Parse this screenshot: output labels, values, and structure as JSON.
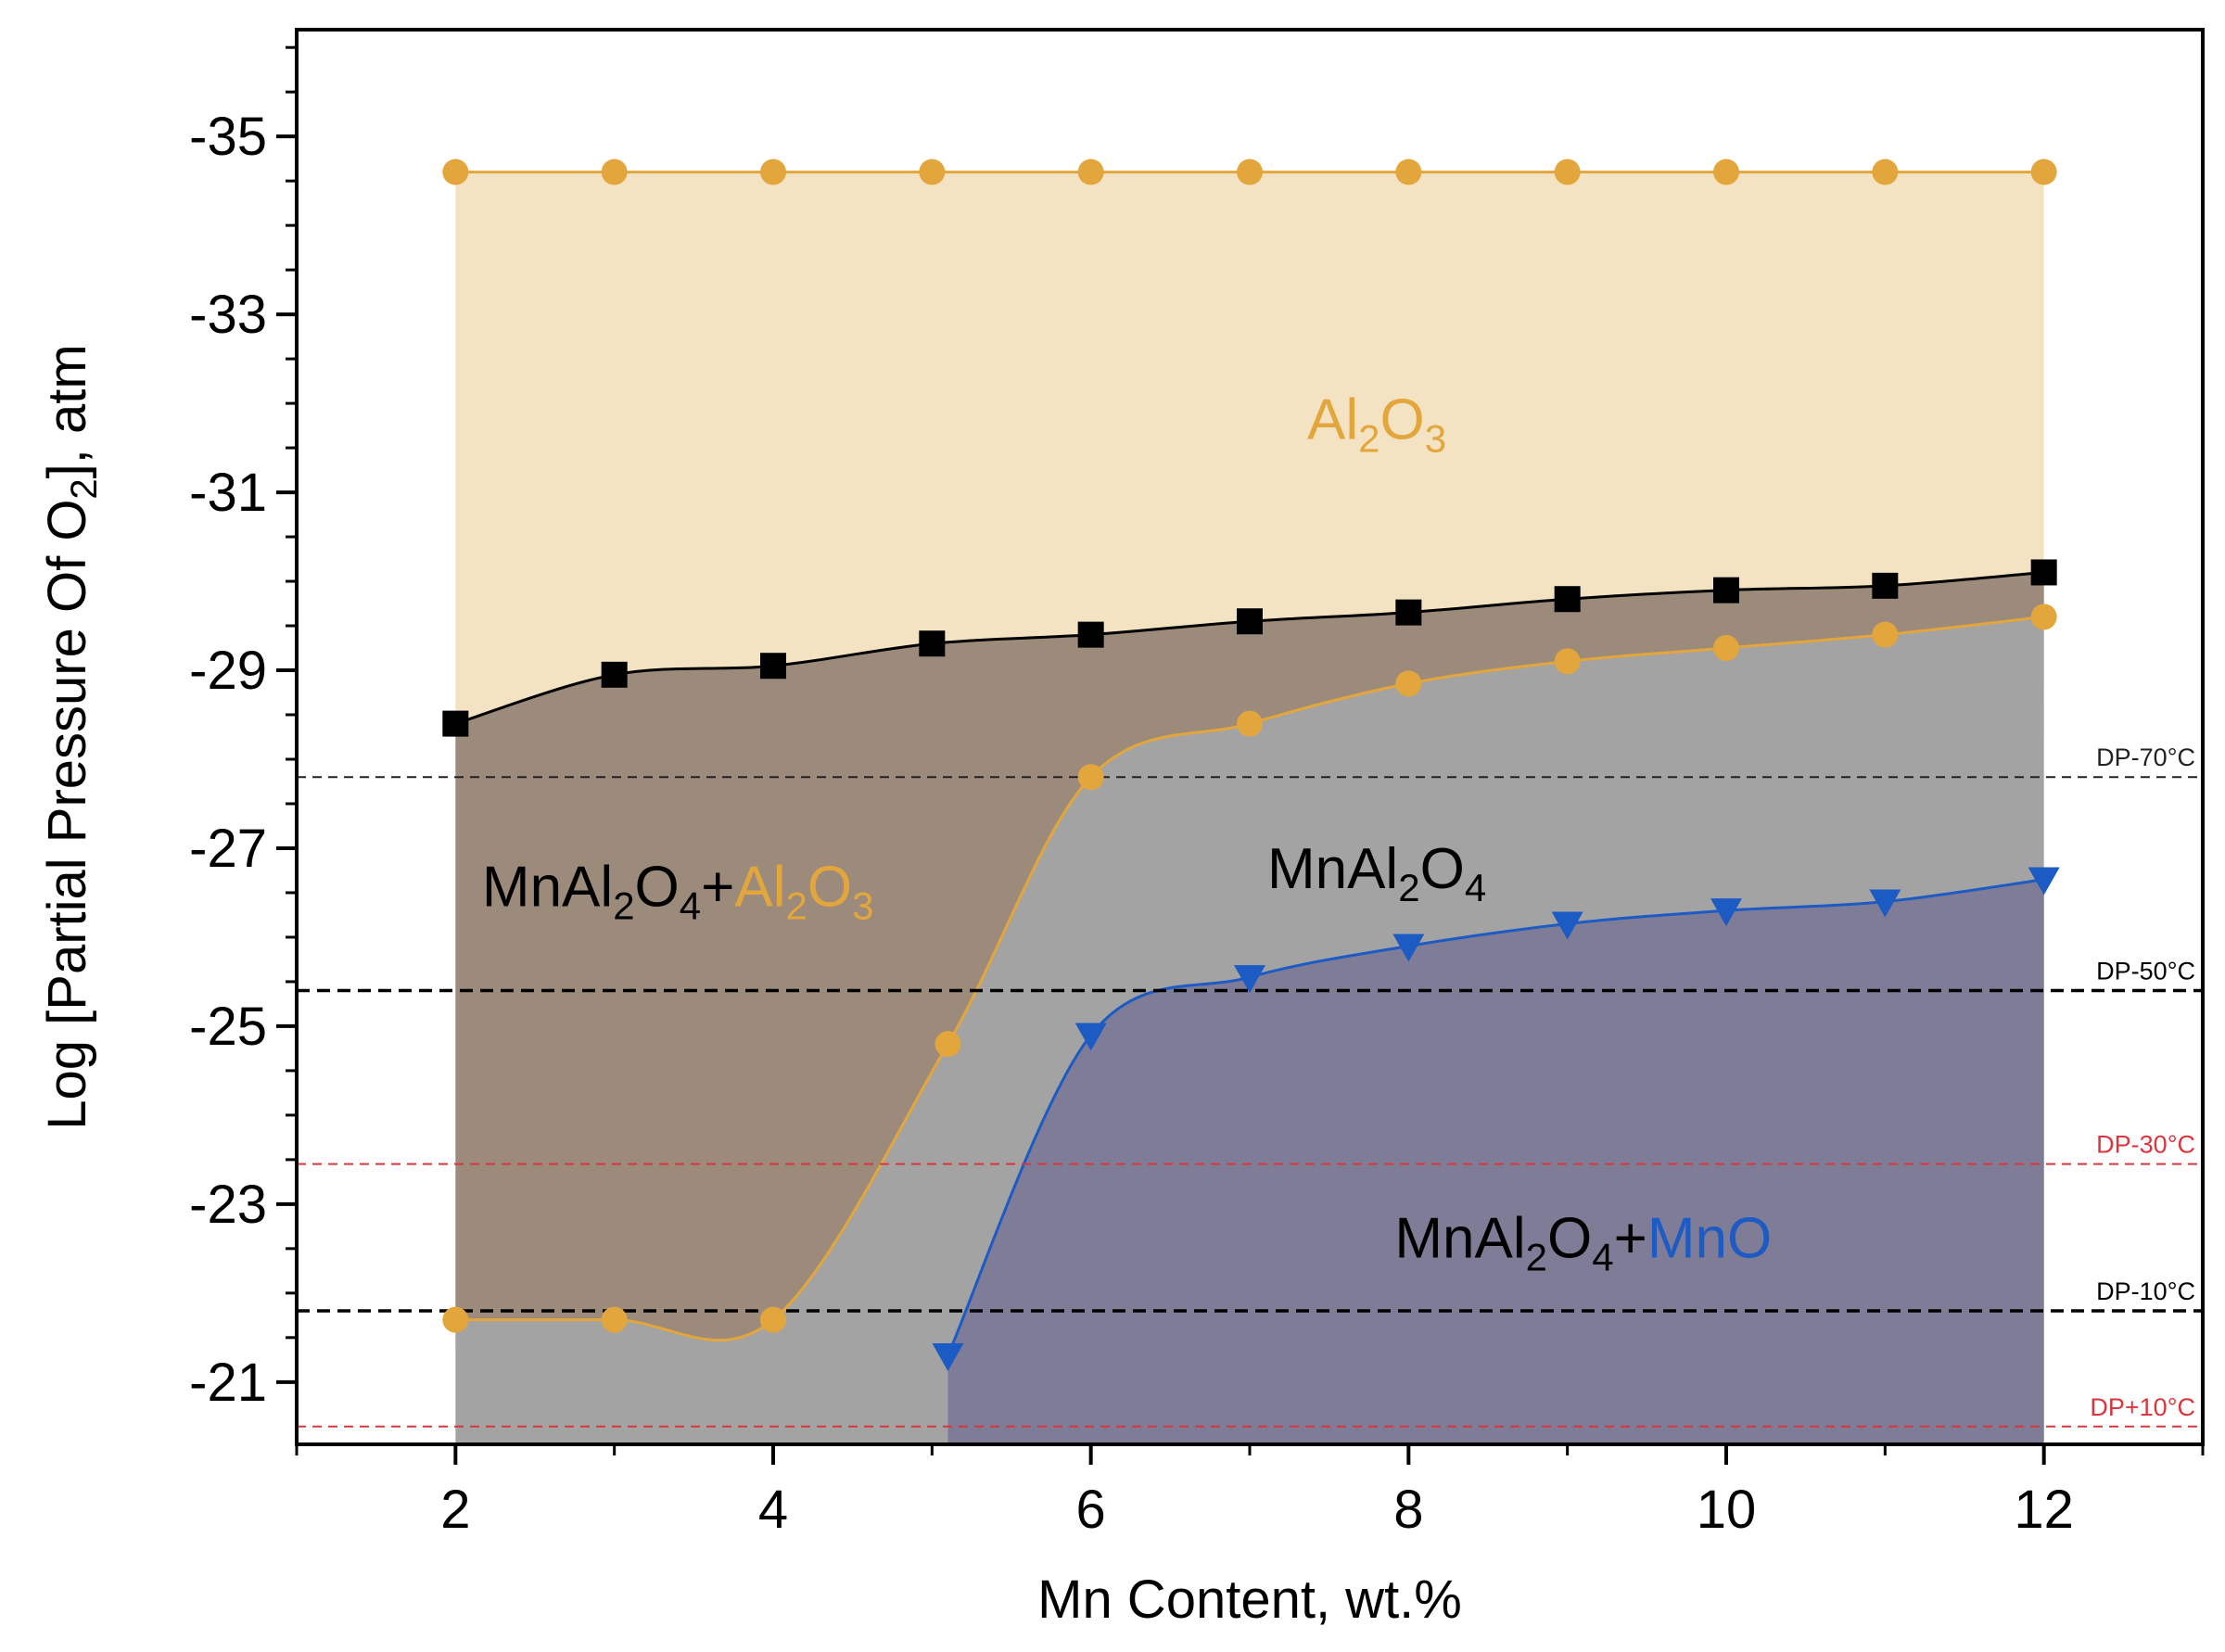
{
  "chart_data": {
    "type": "area",
    "xlabel": "Mn Content, wt.%",
    "ylabel": {
      "prefix": "Log [Partial Pressure Of O",
      "subscript": "2",
      "suffix": "], atm"
    },
    "xlim": [
      1,
      13
    ],
    "ylim": [
      -20.3,
      -36.2
    ],
    "y_axis_reversed": true,
    "x_ticks": [
      2,
      4,
      6,
      8,
      10,
      12
    ],
    "x_tick_labels": [
      "2",
      "4",
      "6",
      "8",
      "10",
      "12"
    ],
    "y_ticks": [
      -35,
      -33,
      -31,
      -29,
      -27,
      -25,
      -23,
      -21
    ],
    "y_tick_labels": [
      "-35",
      "-33",
      "-31",
      "-29",
      "-27",
      "-25",
      "-23",
      "-21"
    ],
    "series": [
      {
        "marker": "circle",
        "color": "#E3A63C",
        "x": [
          2,
          3,
          4,
          5,
          6,
          7,
          8,
          9,
          10,
          11,
          12
        ],
        "values": [
          -34.6,
          -34.6,
          -34.6,
          -34.6,
          -34.6,
          -34.6,
          -34.6,
          -34.6,
          -34.6,
          -34.6,
          -34.6
        ]
      },
      {
        "marker": "square",
        "color": "#000000",
        "x": [
          2,
          3,
          4,
          5,
          6,
          7,
          8,
          9,
          10,
          11,
          12
        ],
        "values": [
          -28.4,
          -28.95,
          -29.05,
          -29.3,
          -29.4,
          -29.55,
          -29.65,
          -29.8,
          -29.9,
          -29.95,
          -30.1
        ]
      },
      {
        "marker": "circle",
        "color": "#E3A63C",
        "x": [
          2,
          3,
          4,
          5.1,
          6,
          7,
          8,
          9,
          10,
          11,
          12
        ],
        "values": [
          -21.7,
          -21.7,
          -21.7,
          -24.8,
          -27.8,
          -28.4,
          -28.85,
          -29.1,
          -29.25,
          -29.4,
          -29.6
        ]
      },
      {
        "marker": "triangle-down",
        "color": "#1C5BC4",
        "x": [
          5.1,
          6,
          7,
          8,
          9,
          10,
          11,
          12
        ],
        "values": [
          -21.3,
          -24.9,
          -25.55,
          -25.9,
          -26.15,
          -26.3,
          -26.4,
          -26.65
        ]
      }
    ],
    "regions": [
      {
        "color": "#F4E3C3"
      },
      {
        "color": "#9C8B7B"
      },
      {
        "color": "#A3A3A3"
      },
      {
        "color": "#7F7C97"
      }
    ],
    "annotations": [
      {
        "x": 7.8,
        "y": -31.6,
        "parts": [
          {
            "text": "Al",
            "color": "#E3A63C"
          },
          {
            "text": "2",
            "color": "#E3A63C",
            "sub": true
          },
          {
            "text": "O",
            "color": "#E3A63C"
          },
          {
            "text": "3",
            "color": "#E3A63C",
            "sub": true
          }
        ]
      },
      {
        "x": 3.4,
        "y": -26.35,
        "parts": [
          {
            "text": "MnAl",
            "color": "#000000"
          },
          {
            "text": "2",
            "color": "#000000",
            "sub": true
          },
          {
            "text": "O",
            "color": "#000000"
          },
          {
            "text": "4",
            "color": "#000000",
            "sub": true
          },
          {
            "text": "+",
            "color": "#000000"
          },
          {
            "text": "Al",
            "color": "#E3A63C"
          },
          {
            "text": "2",
            "color": "#E3A63C",
            "sub": true
          },
          {
            "text": "O",
            "color": "#E3A63C"
          },
          {
            "text": "3",
            "color": "#E3A63C",
            "sub": true
          }
        ]
      },
      {
        "x": 7.8,
        "y": -26.55,
        "parts": [
          {
            "text": "MnAl",
            "color": "#000000"
          },
          {
            "text": "2",
            "color": "#000000",
            "sub": true
          },
          {
            "text": "O",
            "color": "#000000"
          },
          {
            "text": "4",
            "color": "#000000",
            "sub": true
          }
        ]
      },
      {
        "x": 9.1,
        "y": -22.4,
        "parts": [
          {
            "text": "MnAl",
            "color": "#000000"
          },
          {
            "text": "2",
            "color": "#000000",
            "sub": true
          },
          {
            "text": "O",
            "color": "#000000"
          },
          {
            "text": "4",
            "color": "#000000",
            "sub": true
          },
          {
            "text": "+",
            "color": "#000000"
          },
          {
            "text": "MnO",
            "color": "#1C5BC4"
          }
        ]
      }
    ],
    "reference_lines": [
      {
        "label": "DP-70°C",
        "y": -27.8,
        "color": "#222222",
        "style": "fine-dash"
      },
      {
        "label": "DP-50°C",
        "y": -25.4,
        "color": "#000000",
        "style": "dash"
      },
      {
        "label": "DP-30°C",
        "y": -23.45,
        "color": "#D9363E",
        "style": "fine-dash"
      },
      {
        "label": "DP-10°C",
        "y": -21.8,
        "color": "#000000",
        "style": "dash"
      },
      {
        "label": "DP+10°C",
        "y": -20.5,
        "color": "#D9363E",
        "style": "fine-dash"
      }
    ]
  }
}
